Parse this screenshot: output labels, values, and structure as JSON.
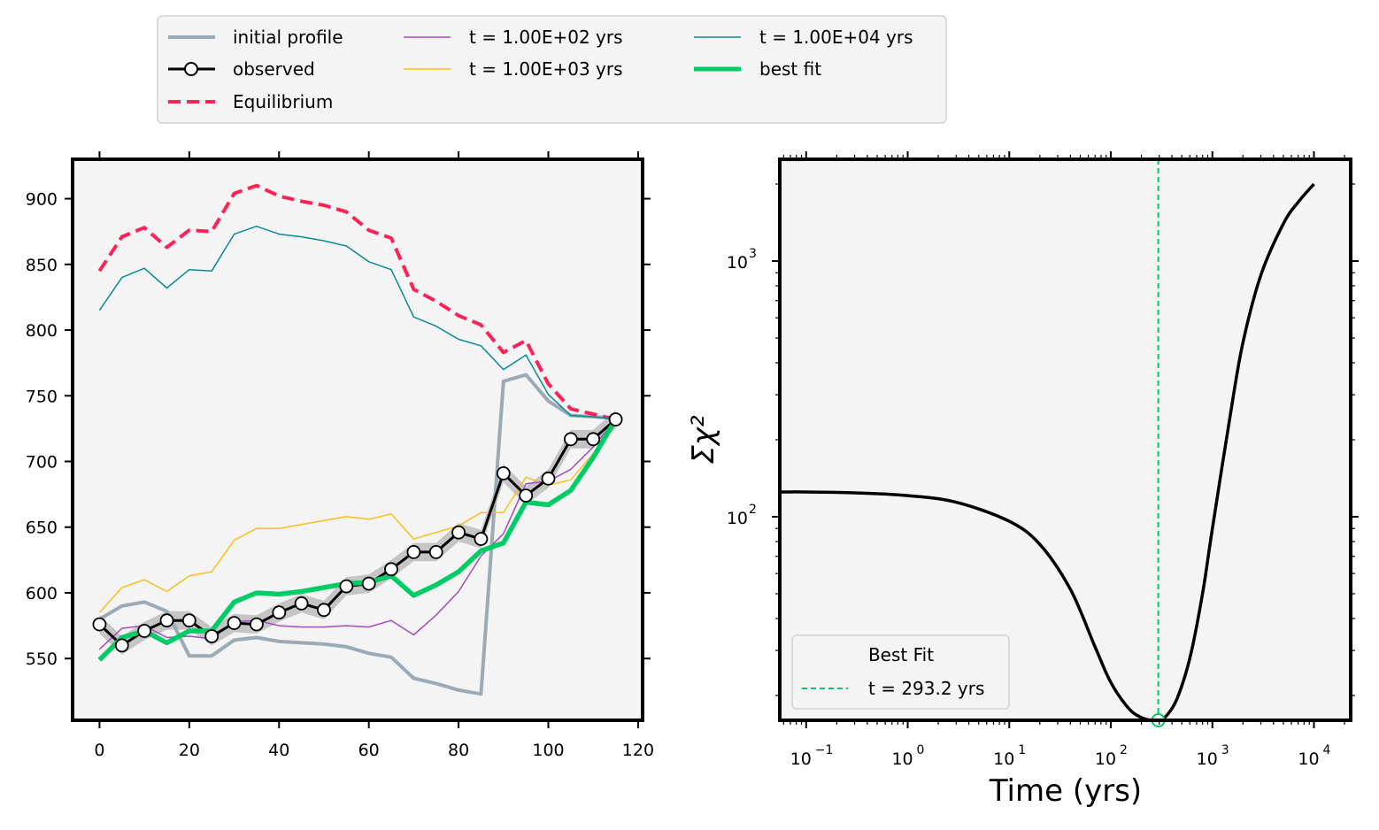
{
  "colors": {
    "initial": "#9aabb6",
    "observed": "#000000",
    "equilibrium": "#ff2255",
    "t100": "#a44bbd",
    "t1000": "#f5c020",
    "t10000": "#0a8a96",
    "bestfit": "#00cc66",
    "axes_bg": "#f4f4f4",
    "band": "#bcbcbc"
  },
  "legend_top": {
    "items": [
      {
        "key": "initial",
        "label": "initial profile"
      },
      {
        "key": "observed",
        "label": "observed"
      },
      {
        "key": "equilibrium",
        "label": "Equilibrium"
      },
      {
        "key": "t100",
        "label": "t = 1.00E+02 yrs"
      },
      {
        "key": "t1000",
        "label": "t = 1.00E+03 yrs"
      },
      {
        "key": "t10000",
        "label": "t = 1.00E+04 yrs"
      },
      {
        "key": "bestfit",
        "label": "best fit"
      }
    ]
  },
  "chart_data": [
    {
      "type": "line",
      "xlim": [
        -6,
        121
      ],
      "ylim": [
        503,
        930
      ],
      "xticks": [
        0,
        20,
        40,
        60,
        80,
        100,
        120
      ],
      "yticks": [
        550,
        600,
        650,
        700,
        750,
        800,
        850,
        900
      ],
      "x": [
        0,
        5,
        10,
        15,
        20,
        25,
        30,
        35,
        40,
        45,
        50,
        55,
        60,
        65,
        70,
        75,
        80,
        85,
        90,
        95,
        100,
        105,
        110,
        115
      ],
      "series": [
        {
          "key": "initial",
          "name": "initial profile",
          "values": [
            580,
            590,
            593,
            586,
            552,
            552,
            564,
            566,
            563,
            562,
            561,
            559,
            554,
            551,
            535,
            531,
            526,
            523,
            761,
            766,
            746,
            735,
            734,
            733
          ]
        },
        {
          "key": "equilibrium",
          "name": "Equilibrium",
          "values": [
            845,
            871,
            878,
            863,
            876,
            875,
            904,
            910,
            902,
            898,
            895,
            890,
            876,
            870,
            831,
            822,
            811,
            804,
            783,
            792,
            759,
            740,
            736,
            732
          ]
        },
        {
          "key": "t10000",
          "name": "t = 1.00E+04 yrs",
          "values": [
            815,
            840,
            847,
            832,
            846,
            845,
            873,
            879,
            873,
            871,
            868,
            864,
            852,
            846,
            810,
            803,
            793,
            788,
            770,
            781,
            751,
            735,
            734,
            732
          ]
        },
        {
          "key": "t1000",
          "name": "t = 1.00E+03 yrs",
          "values": [
            585,
            604,
            610,
            601,
            613,
            616,
            640,
            649,
            649,
            652,
            655,
            658,
            656,
            660,
            641,
            646,
            651,
            661,
            661,
            688,
            682,
            686,
            706,
            732
          ]
        },
        {
          "key": "t100",
          "name": "t = 1.00E+02 yrs",
          "values": [
            557,
            573,
            575,
            566,
            567,
            565,
            578,
            579,
            575,
            574,
            574,
            575,
            574,
            579,
            568,
            583,
            601,
            628,
            645,
            683,
            685,
            694,
            711,
            732
          ]
        },
        {
          "key": "observed",
          "name": "observed",
          "values": [
            576,
            560,
            571,
            579,
            579,
            567,
            577,
            576,
            585,
            592,
            587,
            605,
            607,
            618,
            631,
            631,
            646,
            641,
            691,
            674,
            687,
            717,
            717,
            732
          ],
          "error": 7
        },
        {
          "key": "bestfit",
          "name": "best fit",
          "values": [
            549,
            566,
            571,
            562,
            571,
            571,
            593,
            600,
            599,
            601,
            604,
            607,
            608,
            613,
            598,
            606,
            616,
            632,
            638,
            669,
            667,
            678,
            703,
            732
          ]
        }
      ]
    },
    {
      "type": "line",
      "xscale": "log",
      "yscale": "log",
      "xlim": [
        0.055,
        23000
      ],
      "ylim": [
        16,
        2500
      ],
      "ylabel": "Σχ²",
      "xlabel": "Time (yrs)",
      "xticks": [
        {
          "v": 0.1,
          "base": "10",
          "exp": "−1"
        },
        {
          "v": 1,
          "base": "10",
          "exp": "0"
        },
        {
          "v": 10,
          "base": "10",
          "exp": "1"
        },
        {
          "v": 100,
          "base": "10",
          "exp": "2"
        },
        {
          "v": 1000,
          "base": "10",
          "exp": "3"
        },
        {
          "v": 10000,
          "base": "10",
          "exp": "4"
        }
      ],
      "yticks": [
        {
          "v": 100,
          "base": "10",
          "exp": "2"
        },
        {
          "v": 1000,
          "base": "10",
          "exp": "3"
        }
      ],
      "x": [
        0.055,
        0.1,
        0.3,
        1,
        3,
        10,
        20,
        40,
        70,
        100,
        150,
        200,
        250,
        293.2,
        350,
        450,
        600,
        800,
        1000,
        1500,
        2000,
        3000,
        5000,
        7000,
        10000
      ],
      "values": [
        125,
        125,
        124,
        121,
        114,
        96,
        78,
        52,
        31,
        22.5,
        17.8,
        16.4,
        16.0,
        16.0,
        16.6,
        19.5,
        28,
        50,
        90,
        250,
        480,
        880,
        1400,
        1700,
        2000
      ],
      "best_fit_time": 293.2,
      "best_fit_chi2": 16.0,
      "legend": {
        "title": "Best Fit",
        "label": "t = 293.2 yrs",
        "position": "lower left"
      }
    }
  ]
}
